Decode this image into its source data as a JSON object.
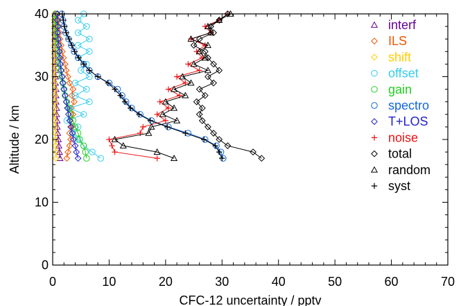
{
  "chart_data": {
    "type": "line",
    "xlabel": "CFC-12 uncertainty / pptv",
    "ylabel": "Altitude / km",
    "xlim": [
      0,
      70
    ],
    "ylim": [
      0,
      40
    ],
    "x_ticks": [
      0,
      10,
      20,
      30,
      40,
      50,
      60,
      70
    ],
    "y_ticks": [
      0,
      10,
      20,
      30,
      40
    ],
    "grid": false,
    "legend_position": "right",
    "altitudes": [
      17,
      18,
      19,
      20,
      21,
      22,
      23,
      24,
      25,
      26,
      27,
      28,
      29,
      30,
      31,
      32,
      33,
      34,
      35,
      36,
      37,
      38,
      39,
      40
    ],
    "series": [
      {
        "name": "interf",
        "color": "#660099",
        "marker": "triangle",
        "values": [
          1.3,
          1.2,
          1.1,
          1.0,
          0.9,
          0.8,
          0.8,
          0.7,
          0.7,
          0.6,
          0.6,
          0.6,
          0.5,
          0.5,
          0.5,
          0.5,
          0.5,
          0.4,
          0.4,
          0.4,
          0.4,
          0.4,
          0.4,
          0.4
        ]
      },
      {
        "name": "ILS",
        "color": "#ee5500",
        "marker": "diamond",
        "values": [
          2.5,
          2.7,
          3.0,
          3.2,
          3.0,
          3.4,
          3.1,
          3.6,
          3.3,
          3.8,
          3.4,
          3.6,
          3.0,
          2.7,
          2.4,
          2.2,
          1.9,
          1.7,
          1.5,
          1.3,
          1.2,
          1.1,
          1.0,
          0.9
        ]
      },
      {
        "name": "shift",
        "color": "#ffcc00",
        "marker": "diamond",
        "values": [
          0.6,
          0.6,
          0.5,
          0.5,
          0.5,
          0.5,
          0.4,
          0.4,
          0.4,
          0.4,
          0.4,
          0.4,
          0.3,
          0.3,
          0.3,
          0.3,
          0.3,
          0.3,
          0.3,
          0.3,
          0.3,
          0.3,
          0.3,
          0.3
        ]
      },
      {
        "name": "offset",
        "color": "#33ccee",
        "marker": "circle",
        "values": [
          8.5,
          7.0,
          5.5,
          4.5,
          3.5,
          4.5,
          2.5,
          5.5,
          3.0,
          6.5,
          4.0,
          6.0,
          4.0,
          6.5,
          5.0,
          6.0,
          4.5,
          6.5,
          4.5,
          6.5,
          4.5,
          6.0,
          4.5,
          5.5
        ]
      },
      {
        "name": "gain",
        "color": "#22cc22",
        "marker": "circle",
        "values": [
          6.0,
          5.8,
          5.5,
          4.8,
          4.5,
          4.0,
          3.6,
          3.2,
          2.8,
          2.5,
          2.2,
          2.0,
          1.8,
          1.6,
          1.4,
          1.2,
          1.1,
          1.0,
          0.9,
          0.8,
          0.7,
          0.6,
          0.6,
          0.5
        ]
      },
      {
        "name": "spectro",
        "color": "#1166dd",
        "marker": "circle",
        "values": [
          30.2,
          29.8,
          29.0,
          27.0,
          24.0,
          20.5,
          17.5,
          15.5,
          14.0,
          13.0,
          12.3,
          11.5,
          10.0,
          8.0,
          6.5,
          5.5,
          4.5,
          3.8,
          3.3,
          2.8,
          2.3,
          2.0,
          1.8,
          1.6
        ]
      },
      {
        "name": "T+LOS",
        "color": "#2222cc",
        "marker": "diamond",
        "values": [
          4.5,
          4.2,
          4.0,
          3.7,
          3.5,
          3.2,
          3.0,
          2.8,
          2.6,
          2.4,
          2.2,
          2.0,
          1.8,
          1.7,
          1.5,
          1.4,
          1.3,
          1.2,
          1.1,
          1.0,
          0.9,
          0.9,
          0.8,
          0.8
        ]
      },
      {
        "name": "noise",
        "color": "#ee1111",
        "marker": "plus",
        "values": [
          18.5,
          11.0,
          10.5,
          10.0,
          15.5,
          16.0,
          20.0,
          18.5,
          20.5,
          19.0,
          22.5,
          20.5,
          23.5,
          22.0,
          26.0,
          24.0,
          26.5,
          25.5,
          27.0,
          24.5,
          28.0,
          27.0,
          29.5,
          31.0
        ]
      },
      {
        "name": "total",
        "color": "#000000",
        "marker": "diamond",
        "values": [
          37.0,
          35.5,
          31.0,
          29.5,
          28.5,
          27.5,
          26.5,
          26.0,
          26.5,
          25.5,
          27.0,
          26.0,
          28.5,
          27.5,
          29.5,
          28.5,
          27.5,
          27.0,
          25.0,
          26.0,
          28.5,
          28.0,
          29.5,
          31.0
        ]
      },
      {
        "name": "random",
        "color": "#000000",
        "marker": "triangle",
        "values": [
          21.5,
          18.5,
          12.5,
          11.0,
          17.0,
          17.5,
          22.0,
          19.5,
          21.5,
          20.0,
          23.5,
          21.5,
          24.5,
          23.0,
          27.5,
          25.0,
          27.0,
          26.0,
          27.5,
          24.5,
          28.0,
          27.5,
          29.5,
          31.5
        ]
      },
      {
        "name": "syst",
        "color": "#000000",
        "marker": "plus",
        "values": [
          30.0,
          29.5,
          28.8,
          26.8,
          23.5,
          20.3,
          17.3,
          15.3,
          13.8,
          12.8,
          12.0,
          11.0,
          9.8,
          8.0,
          6.5,
          5.5,
          4.6,
          3.9,
          3.4,
          2.9,
          2.4,
          2.1,
          1.9,
          1.7
        ]
      }
    ]
  }
}
